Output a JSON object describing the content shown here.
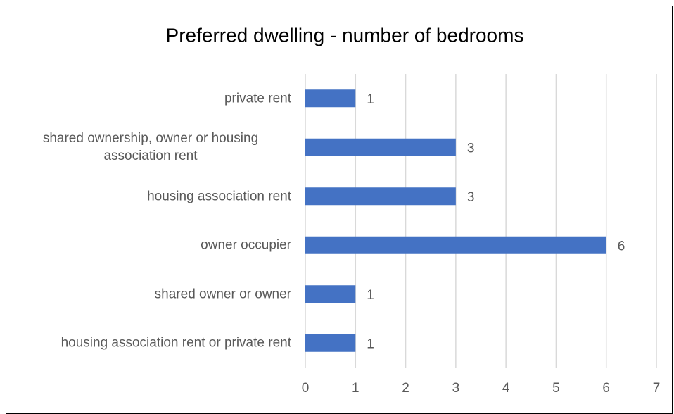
{
  "chart_data": {
    "type": "bar",
    "orientation": "horizontal",
    "title": "Preferred dwelling - number of bedrooms",
    "categories": [
      "private rent",
      "shared ownership, owner or housing association rent",
      "housing association rent",
      "owner occupier",
      "shared owner or owner",
      "housing association rent or private rent"
    ],
    "values": [
      1,
      3,
      3,
      6,
      1,
      1
    ],
    "color": "#4472c4",
    "xlim": [
      0,
      7
    ],
    "xticks": [
      0,
      1,
      2,
      3,
      4,
      5,
      6,
      7
    ],
    "grid": true
  }
}
